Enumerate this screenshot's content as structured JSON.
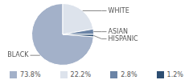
{
  "chart_data": {
    "type": "pie",
    "categories": [
      "BLACK",
      "WHITE",
      "ASIAN",
      "HISPANIC"
    ],
    "values": [
      73.8,
      22.2,
      2.8,
      1.2
    ],
    "value_labels": [
      "73.8%",
      "22.2%",
      "2.8%",
      "1.2%"
    ],
    "colors": [
      "#a3b1c9",
      "#dde3ec",
      "#6b84a6",
      "#2d4e72"
    ],
    "legend": "bottom"
  }
}
